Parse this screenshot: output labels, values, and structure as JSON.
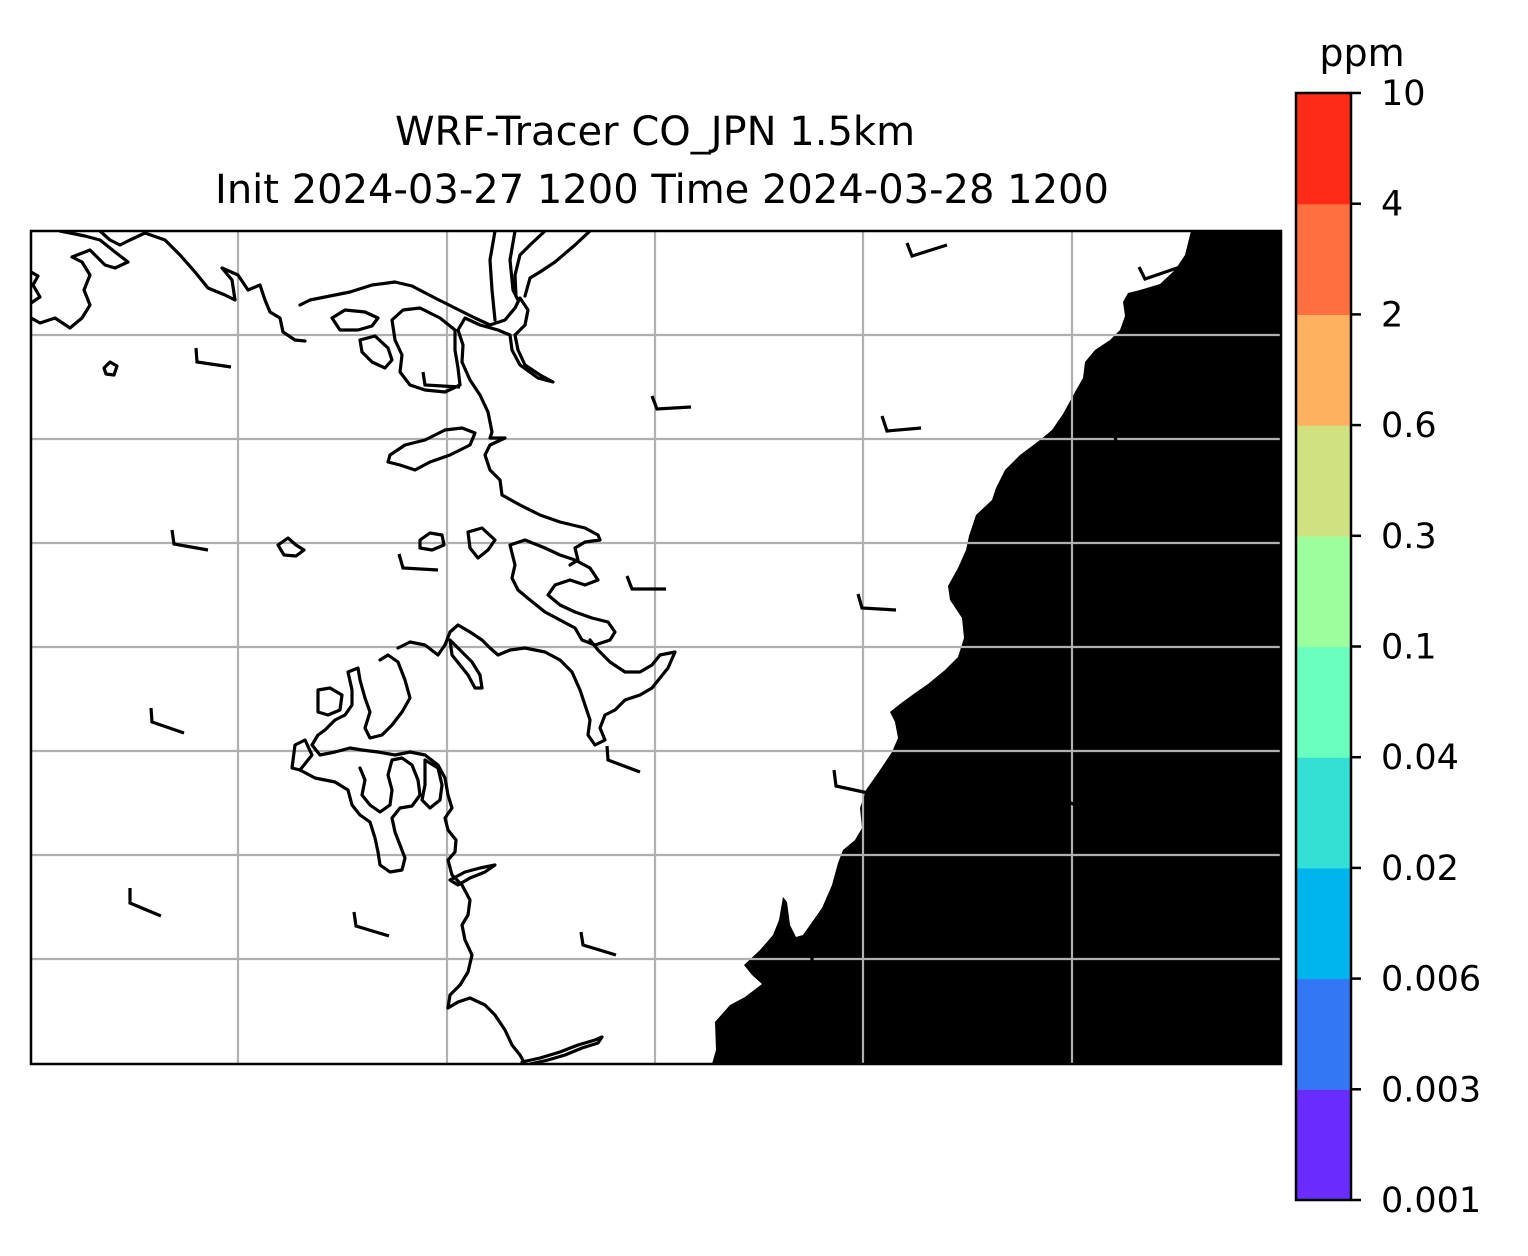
{
  "title": {
    "line1": "WRF-Tracer CO_JPN 1.5km",
    "line2": "Init 2024-03-27 1200 Time 2024-03-28 1200"
  },
  "colorbar": {
    "unit": "ppm",
    "levels": [
      "0.001",
      "0.003",
      "0.006",
      "0.02",
      "0.04",
      "0.1",
      "0.3",
      "0.6",
      "2",
      "4",
      "10"
    ],
    "colors": [
      "#6a2bff",
      "#3477f5",
      "#00b4ee",
      "#32e0d6",
      "#6affbe",
      "#9dfe9e",
      "#d0e280",
      "#ffb060",
      "#ff7040",
      "#ff2a18"
    ]
  },
  "chart_data": {
    "type": "map",
    "field": "CO tracer concentration",
    "unit": "ppm",
    "contour_levels": [
      0.001,
      0.003,
      0.006,
      0.02,
      0.04,
      0.1,
      0.3,
      0.6,
      2,
      4,
      10
    ],
    "filled_region_level_range": [
      0.001,
      0.003
    ],
    "graticule": true,
    "features": [
      "coastlines",
      "wind barbs",
      "filled contours"
    ]
  }
}
